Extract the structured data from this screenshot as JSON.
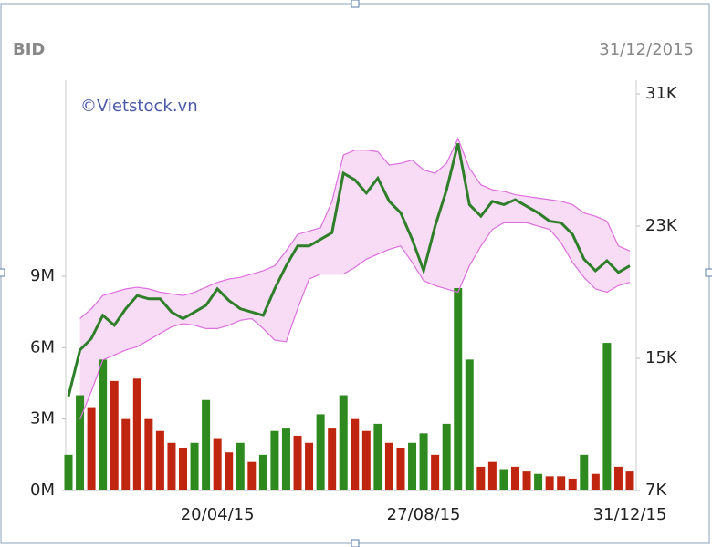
{
  "chart_data": {
    "type": "stock",
    "title": "BID",
    "date": "31/12/2015",
    "watermark": "©Vietstock.vn",
    "categories": [
      null,
      null,
      null,
      null,
      null,
      null,
      null,
      null,
      null,
      null,
      null,
      null,
      null,
      "20/04/15",
      null,
      null,
      null,
      null,
      null,
      null,
      null,
      null,
      null,
      null,
      null,
      null,
      null,
      null,
      null,
      null,
      null,
      "27/08/15",
      null,
      null,
      null,
      null,
      null,
      null,
      null,
      null,
      null,
      null,
      null,
      null,
      null,
      null,
      null,
      null,
      null,
      "31/12/15"
    ],
    "ylim": [
      0,
      17230000
    ],
    "yticks": [
      {
        "value": 0,
        "label": "0M"
      },
      {
        "value": 3000000,
        "label": "3M"
      },
      {
        "value": 6000000,
        "label": "6M"
      },
      {
        "value": 9000000,
        "label": "9M"
      }
    ],
    "y2lim": [
      7000,
      31830
    ],
    "y2ticks": [
      {
        "value": 7000,
        "label": "7K"
      },
      {
        "value": 15000,
        "label": "15K"
      },
      {
        "value": 23000,
        "label": "23K"
      },
      {
        "value": 31000,
        "label": "31K"
      }
    ],
    "volume": {
      "values": [
        1500000,
        4000000,
        3500000,
        5500000,
        4600000,
        3000000,
        4700000,
        3000000,
        2500000,
        2000000,
        1800000,
        2000000,
        3800000,
        2200000,
        1600000,
        2000000,
        1200000,
        1500000,
        2500000,
        2600000,
        2300000,
        2000000,
        3200000,
        2600000,
        4000000,
        3000000,
        2500000,
        2800000,
        2000000,
        1800000,
        2000000,
        2400000,
        1500000,
        2800000,
        8500000,
        5500000,
        1000000,
        1200000,
        900000,
        1000000,
        800000,
        700000,
        600000,
        600000,
        500000,
        1500000,
        700000,
        6200000,
        1000000,
        800000
      ],
      "colors": [
        "#2e8a1e",
        "#2e8a1e",
        "#c0260f",
        "#2e8a1e",
        "#c0260f",
        "#c0260f",
        "#c0260f",
        "#c0260f",
        "#c0260f",
        "#c0260f",
        "#c0260f",
        "#2e8a1e",
        "#2e8a1e",
        "#c0260f",
        "#c0260f",
        "#2e8a1e",
        "#c0260f",
        "#2e8a1e",
        "#2e8a1e",
        "#2e8a1e",
        "#c0260f",
        "#c0260f",
        "#2e8a1e",
        "#c0260f",
        "#2e8a1e",
        "#c0260f",
        "#c0260f",
        "#2e8a1e",
        "#c0260f",
        "#c0260f",
        "#2e8a1e",
        "#2e8a1e",
        "#c0260f",
        "#2e8a1e",
        "#2e8a1e",
        "#2e8a1e",
        "#c0260f",
        "#c0260f",
        "#2e8a1e",
        "#c0260f",
        "#c0260f",
        "#2e8a1e",
        "#c0260f",
        "#c0260f",
        "#c0260f",
        "#2e8a1e",
        "#c0260f",
        "#2e8a1e",
        "#c0260f",
        "#c0260f"
      ]
    },
    "band": {
      "color": "#dd6fdd",
      "fill": "#f8dcf6",
      "upper": [
        null,
        17400,
        18000,
        18800,
        19000,
        19200,
        19300,
        19200,
        19000,
        18900,
        18800,
        19000,
        19300,
        19600,
        19800,
        19900,
        20100,
        20300,
        20600,
        21500,
        22500,
        22700,
        22900,
        24500,
        27300,
        27600,
        27600,
        27500,
        26700,
        26800,
        27000,
        26400,
        26200,
        26800,
        28300,
        26500,
        25500,
        25200,
        25100,
        24900,
        24800,
        24700,
        24600,
        24500,
        24300,
        23800,
        23600,
        23300,
        21800,
        21500
      ],
      "lower": [
        null,
        11300,
        13000,
        14900,
        15200,
        15500,
        15700,
        16100,
        16500,
        16900,
        17100,
        17000,
        16800,
        16800,
        17000,
        17300,
        17400,
        16800,
        16100,
        16000,
        18000,
        19800,
        20100,
        20100,
        20100,
        20500,
        21000,
        21300,
        21600,
        21800,
        20800,
        19700,
        19400,
        19200,
        19000,
        20600,
        21800,
        22800,
        23200,
        23200,
        23200,
        23000,
        22800,
        22000,
        20800,
        19900,
        19200,
        19000,
        19400,
        19600
      ]
    },
    "price": {
      "color": "#2f7f2a",
      "values": [
        12700,
        15500,
        16200,
        17600,
        17000,
        18000,
        18800,
        18600,
        18600,
        17800,
        17400,
        17800,
        18200,
        19200,
        18500,
        18000,
        17800,
        17600,
        19200,
        20600,
        21800,
        21800,
        22200,
        22600,
        26200,
        25800,
        25000,
        25900,
        24500,
        23800,
        22200,
        20300,
        23000,
        25200,
        28000,
        24300,
        23600,
        24500,
        24300,
        24600,
        24200,
        23800,
        23300,
        23200,
        22500,
        21000,
        20300,
        20900,
        20200,
        20600
      ]
    }
  }
}
